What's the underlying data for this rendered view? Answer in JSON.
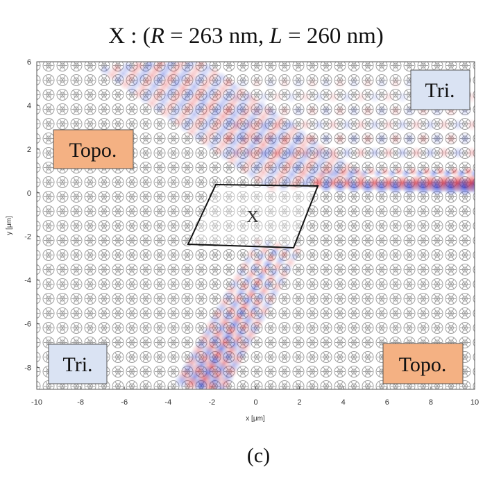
{
  "title": {
    "prefix": "X : (",
    "r_symbol": "R",
    "r_value": " = 263 nm, ",
    "l_symbol": "L",
    "l_value": " = 260 nm)"
  },
  "caption": "(c)",
  "axes": {
    "xlabel": "x [μm]",
    "ylabel": "y [μm]",
    "xlim": [
      -10,
      10
    ],
    "ylim": [
      -9,
      6
    ],
    "xticks": [
      "-10",
      "-8",
      "-6",
      "-4",
      "-2",
      "0",
      "2",
      "4",
      "6",
      "8",
      "10"
    ],
    "yticks": [
      "6",
      "4",
      "2",
      "0",
      "-2",
      "-4",
      "-6",
      "-8"
    ]
  },
  "regions": {
    "topo_upper_left": "Topo.",
    "tri_upper_right": "Tri.",
    "tri_lower_left": "Tri.",
    "topo_lower_right": "Topo.",
    "cavity_label": "X"
  },
  "colors": {
    "topo_box": "#f4b183",
    "tri_box": "#dae3f3",
    "field_positive": "#e0303a",
    "field_negative": "#2a3fd6",
    "lattice": "#8a8a8a"
  }
}
